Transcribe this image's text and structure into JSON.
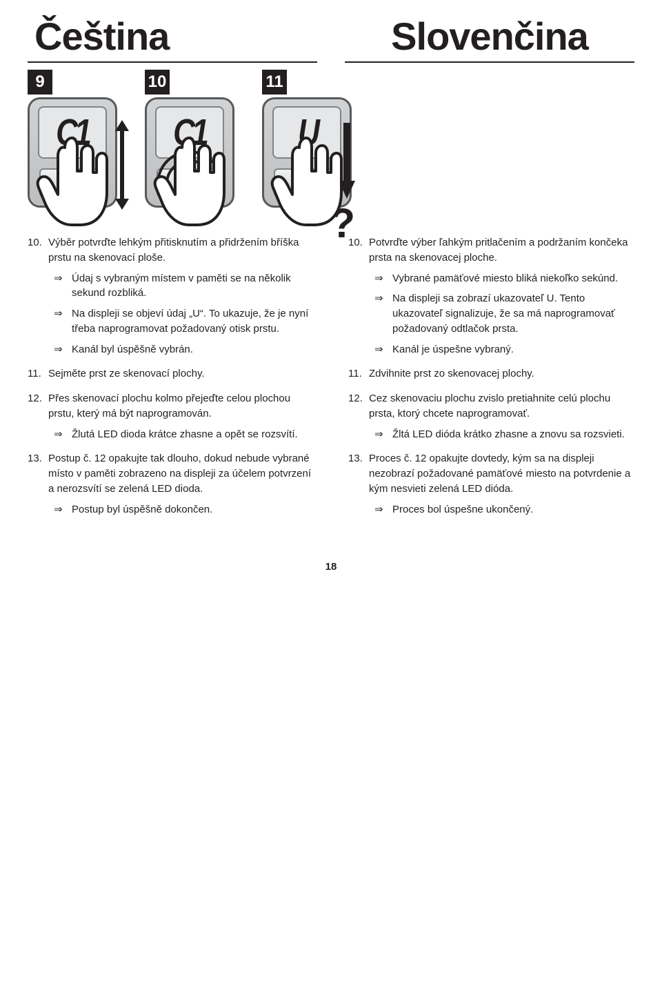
{
  "page_number": "18",
  "colors": {
    "text": "#231f20",
    "device_border": "#58595b",
    "device_bg_top": "#d1d3d4",
    "device_bg_bottom": "#bcbec0",
    "screen_bg": "#e6e7e8",
    "screen_border": "#808285",
    "button_bg_top": "#f1f2f2",
    "button_bg_bottom": "#d1d3d4",
    "hand_fill": "#ffffff",
    "hand_stroke": "#231f20"
  },
  "header": {
    "left": "Čeština",
    "right": "Slovenčina"
  },
  "panels": [
    {
      "num": "9",
      "display": "C1",
      "variant": "updown"
    },
    {
      "num": "10",
      "display": "C1",
      "variant": "press"
    },
    {
      "num": "11",
      "display": "U",
      "variant": "swipe"
    }
  ],
  "left_col": [
    {
      "num": "10.",
      "text": "Výběr potvrďte lehkým přitisknutím a přidržením bříška prstu na skenovací ploše.",
      "subs": [
        "Údaj s vybraným místem v paměti se na několik sekund rozbliká.",
        "Na displeji se objeví údaj „U“. To ukazuje, že je nyní třeba naprogramovat požadovaný otisk prstu.",
        "Kanál byl úspěšně vybrán."
      ]
    },
    {
      "num": "11.",
      "text": "Sejměte prst ze skenovací plochy.",
      "subs": []
    },
    {
      "num": "12.",
      "text": "Přes skenovací plochu kolmo přejeďte celou plochou prstu, který má být naprogramován.",
      "subs": [
        "Žlutá LED dioda krátce zhasne a opět se rozsvítí."
      ]
    },
    {
      "num": "13.",
      "text": "Postup č. 12 opakujte tak dlouho, dokud nebude vybrané místo v paměti zobrazeno na displeji za účelem potvrzení a nerozsvítí se zelená LED dioda.",
      "subs": [
        "Postup byl úspěšně dokončen."
      ]
    }
  ],
  "right_col": [
    {
      "num": "10.",
      "text": "Potvrďte výber ľahkým pritlačením a podržaním končeka prsta na skenovacej ploche.",
      "subs": [
        "Vybrané pamäťové miesto bliká niekoľko sekúnd.",
        "Na displeji sa zobrazí ukazovateľ U. Tento ukazovateľ signalizuje, že sa má naprogramovať požadovaný odtlačok prsta.",
        "Kanál je úspešne vybraný."
      ]
    },
    {
      "num": "11.",
      "text": "Zdvihnite prst zo skenovacej plochy.",
      "subs": []
    },
    {
      "num": "12.",
      "text": "Cez skenovaciu plochu zvislo pretiahnite celú plochu prsta, ktorý chcete naprogramovať.",
      "subs": [
        "Žltá LED dióda krátko zhasne a znovu sa rozsvieti."
      ]
    },
    {
      "num": "13.",
      "text": "Proces č. 12 opakujte dovtedy, kým sa na displeji nezobrazí požadované pamäťové miesto na potvrdenie a kým nesvieti zelená LED dióda.",
      "subs": [
        "Proces bol úspešne ukončený."
      ]
    }
  ]
}
